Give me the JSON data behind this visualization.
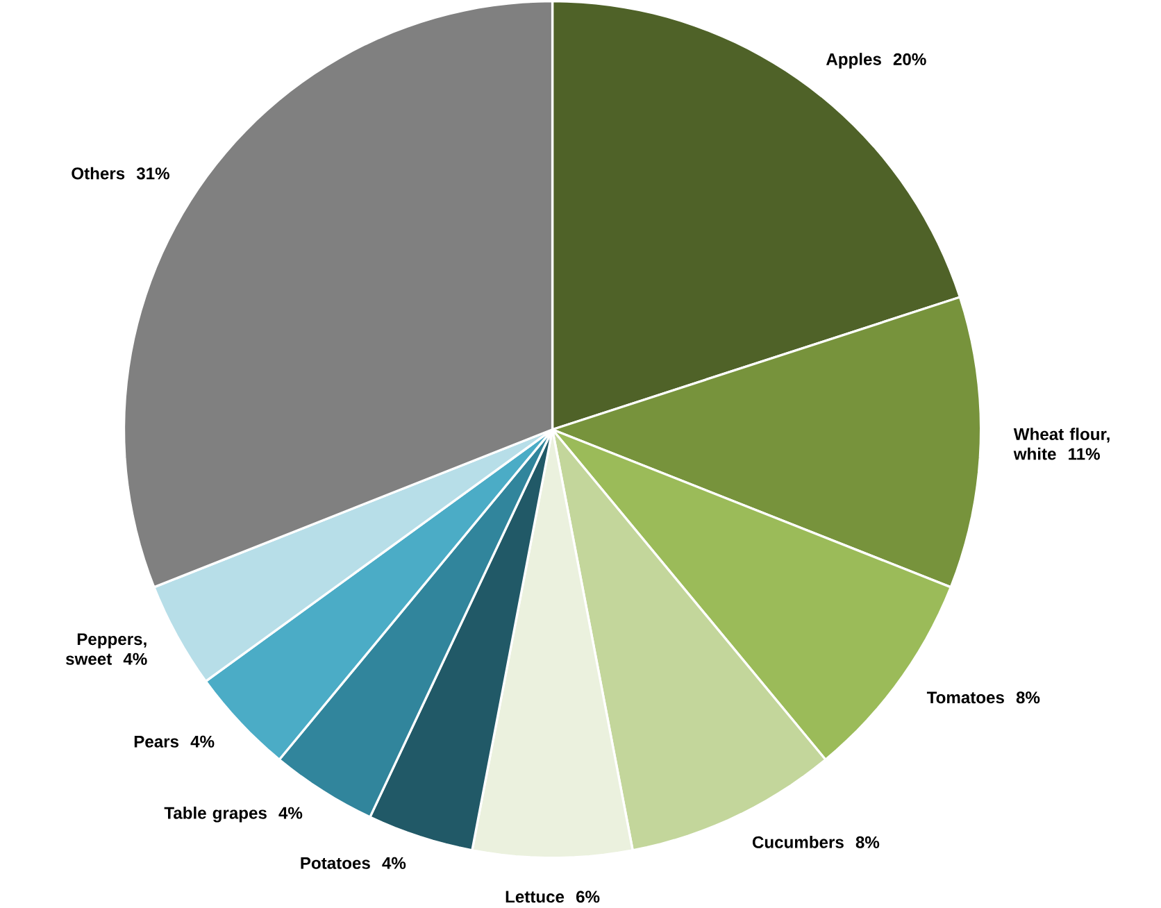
{
  "chart_data": {
    "type": "pie",
    "categories": [
      "Apples",
      "Wheat flour, white",
      "Tomatoes",
      "Cucumbers",
      "Lettuce",
      "Potatoes",
      "Table grapes",
      "Pears",
      "Peppers, sweet",
      "Others"
    ],
    "values": [
      20,
      11,
      8,
      8,
      6,
      4,
      4,
      4,
      4,
      31
    ],
    "value_labels": [
      "20%",
      "11%",
      "8%",
      "8%",
      "6%",
      "4%",
      "4%",
      "4%",
      "4%",
      "31%"
    ],
    "colors": [
      "#4f6228",
      "#77933c",
      "#9bbb59",
      "#c3d69b",
      "#ebf1de",
      "#215967",
      "#31859c",
      "#4bacc6",
      "#b7dee8",
      "#808080"
    ]
  }
}
